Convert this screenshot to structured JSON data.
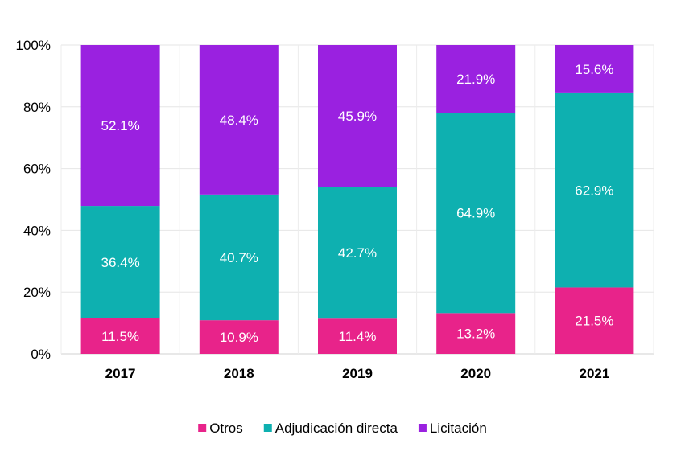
{
  "chart_data": {
    "type": "bar",
    "stacked": true,
    "categories": [
      "2017",
      "2018",
      "2019",
      "2020",
      "2021"
    ],
    "series": [
      {
        "name": "Otros",
        "color": "#E8238A",
        "values": [
          11.5,
          10.9,
          11.4,
          13.2,
          21.5
        ],
        "labels": [
          "11.5%",
          "10.9%",
          "11.4%",
          "13.2%",
          "21.5%"
        ]
      },
      {
        "name": "Adjudicación directa",
        "color": "#0EB0B0",
        "values": [
          36.4,
          40.7,
          42.7,
          64.9,
          62.9
        ],
        "labels": [
          "36.4%",
          "40.7%",
          "42.7%",
          "64.9%",
          "62.9%"
        ]
      },
      {
        "name": "Licitación",
        "color": "#9A21E0",
        "values": [
          52.1,
          48.4,
          45.9,
          21.9,
          15.6
        ],
        "labels": [
          "52.1%",
          "48.4%",
          "45.9%",
          "21.9%",
          "15.6%"
        ]
      }
    ],
    "ylim": [
      0,
      100
    ],
    "yticks": [
      "0%",
      "20%",
      "40%",
      "60%",
      "80%",
      "100%"
    ],
    "grid": true,
    "legend_position": "bottom"
  }
}
